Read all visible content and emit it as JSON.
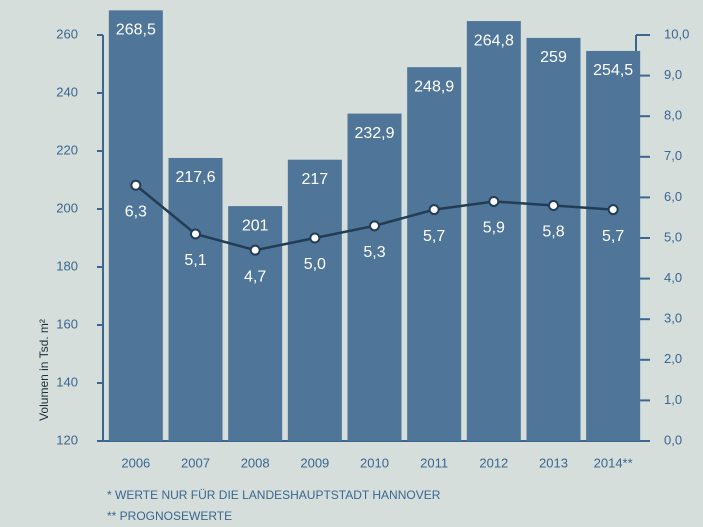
{
  "chart_data": {
    "type": "bar",
    "ylabel": "Volumen in Tsd. m²",
    "categories": [
      "2006",
      "2007",
      "2008",
      "2009",
      "2010",
      "2011",
      "2012",
      "2013",
      "2014**"
    ],
    "series": [
      {
        "type": "bar",
        "color": "#4f7698",
        "values": [
          268.5,
          217.6,
          201,
          217,
          232.9,
          248.9,
          264.8,
          259,
          254.5
        ],
        "value_labels": [
          "268,5",
          "217,6",
          "201",
          "217",
          "232,9",
          "248,9",
          "264,8",
          "259",
          "254,5"
        ]
      },
      {
        "type": "line",
        "axis": "y2",
        "color": "#233c55",
        "values": [
          6.3,
          5.1,
          4.7,
          5.0,
          5.3,
          5.7,
          5.9,
          5.8,
          5.7
        ],
        "value_labels": [
          "6,3",
          "5,1",
          "4,7",
          "5,0",
          "5,3",
          "5,7",
          "5,9",
          "5,8",
          "5,7"
        ]
      }
    ],
    "ylim": [
      120,
      260
    ],
    "yticks": [
      120,
      140,
      160,
      180,
      200,
      220,
      240,
      260
    ],
    "y2lim": [
      0,
      10
    ],
    "y2ticks": [
      {
        "value": 0,
        "label": "0,0"
      },
      {
        "value": 1,
        "label": "1,0"
      },
      {
        "value": 2,
        "label": "2,0"
      },
      {
        "value": 3,
        "label": "3,0"
      },
      {
        "value": 4,
        "label": "4,0"
      },
      {
        "value": 5,
        "label": "5,0"
      },
      {
        "value": 6,
        "label": "6,0"
      },
      {
        "value": 7,
        "label": "7,0"
      },
      {
        "value": 8,
        "label": "8,0"
      },
      {
        "value": 9,
        "label": "9,0"
      },
      {
        "value": 10,
        "label": "10,0"
      }
    ],
    "footnotes": [
      "* WERTE NUR FÜR DIE LANDESHAUPTSTADT HANNOVER",
      "** PROGNOSEWERTE"
    ]
  }
}
